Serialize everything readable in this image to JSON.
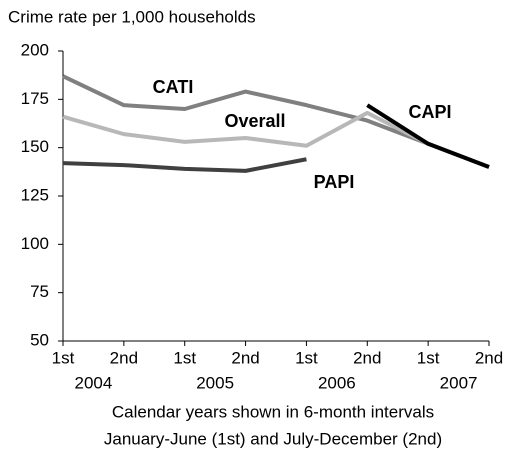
{
  "chart_data": {
    "type": "line",
    "title": "Crime rate per 1,000 households",
    "x_label": [
      "Calendar years shown in 6-month intervals",
      "January-June (1st) and July-December (2nd)"
    ],
    "categories": [
      "1st",
      "2nd",
      "1st",
      "2nd",
      "1st",
      "2nd",
      "1st",
      "2nd"
    ],
    "category_groups": [
      "2004",
      "2005",
      "2006",
      "2007"
    ],
    "series": [
      {
        "name": "CATI",
        "color": "#808080",
        "values": [
          187,
          172,
          170,
          179,
          172,
          164,
          152,
          140
        ]
      },
      {
        "name": "Overall",
        "color": "#b8b8b8",
        "values": [
          166,
          157,
          153,
          155,
          151,
          168,
          152,
          140
        ]
      },
      {
        "name": "PAPI",
        "color": "#404040",
        "values": [
          142,
          141,
          139,
          138,
          144,
          null,
          null,
          null
        ]
      },
      {
        "name": "CAPI",
        "color": "#000000",
        "values": [
          null,
          null,
          null,
          null,
          null,
          172,
          152,
          140
        ]
      }
    ],
    "ylim": [
      50,
      200
    ],
    "yticks": [
      50,
      75,
      100,
      125,
      150,
      175,
      200
    ],
    "grid": false
  }
}
